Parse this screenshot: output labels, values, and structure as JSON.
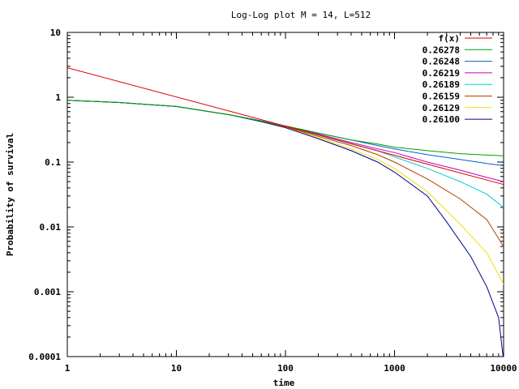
{
  "chart_data": {
    "type": "line",
    "title": "Log-Log plot M = 14, L=512",
    "xlabel": "time",
    "ylabel": "Probability of survival",
    "x_scale": "log",
    "y_scale": "log",
    "xlim": [
      1,
      10000
    ],
    "ylim": [
      0.0001,
      10
    ],
    "x_ticks": [
      1,
      10,
      100,
      1000,
      10000
    ],
    "x_tick_labels": [
      "1",
      "10",
      "100",
      "1000",
      "10000"
    ],
    "y_ticks": [
      0.0001,
      0.001,
      0.01,
      0.1,
      1,
      10
    ],
    "y_tick_labels": [
      "0.0001",
      "0.001",
      "0.01",
      "0.1",
      "1",
      "10"
    ],
    "grid": false,
    "legend_position": "top-right",
    "series": [
      {
        "name": "f(x)",
        "color": "#e00000",
        "x": [
          1,
          10000
        ],
        "y": [
          2.85,
          0.045
        ]
      },
      {
        "name": "0.26278",
        "color": "#00a000",
        "x": [
          1,
          3,
          10,
          30,
          60,
          100,
          200,
          400,
          700,
          1000,
          2000,
          4000,
          7000,
          10000
        ],
        "y": [
          0.9,
          0.83,
          0.72,
          0.54,
          0.43,
          0.36,
          0.28,
          0.22,
          0.19,
          0.17,
          0.15,
          0.135,
          0.128,
          0.125
        ]
      },
      {
        "name": "0.26248",
        "color": "#0060d0",
        "x": [
          1,
          3,
          10,
          30,
          60,
          100,
          200,
          400,
          700,
          1000,
          2000,
          4000,
          7000,
          10000
        ],
        "y": [
          0.9,
          0.83,
          0.72,
          0.54,
          0.43,
          0.36,
          0.28,
          0.22,
          0.18,
          0.16,
          0.13,
          0.11,
          0.095,
          0.088
        ]
      },
      {
        "name": "0.26219",
        "color": "#c000c0",
        "x": [
          1,
          3,
          10,
          30,
          60,
          100,
          200,
          400,
          700,
          1000,
          2000,
          4000,
          7000,
          10000
        ],
        "y": [
          0.9,
          0.83,
          0.72,
          0.54,
          0.43,
          0.36,
          0.27,
          0.2,
          0.16,
          0.14,
          0.1,
          0.075,
          0.058,
          0.05
        ]
      },
      {
        "name": "0.26189",
        "color": "#00d0d0",
        "x": [
          1,
          3,
          10,
          30,
          60,
          100,
          200,
          400,
          700,
          1000,
          2000,
          4000,
          7000,
          10000
        ],
        "y": [
          0.9,
          0.83,
          0.72,
          0.54,
          0.43,
          0.36,
          0.26,
          0.19,
          0.15,
          0.12,
          0.08,
          0.05,
          0.032,
          0.02
        ]
      },
      {
        "name": "0.26159",
        "color": "#b04000",
        "x": [
          1,
          3,
          10,
          30,
          60,
          100,
          200,
          400,
          700,
          1000,
          2000,
          4000,
          7000,
          10000
        ],
        "y": [
          0.9,
          0.83,
          0.72,
          0.54,
          0.43,
          0.35,
          0.25,
          0.18,
          0.13,
          0.1,
          0.055,
          0.027,
          0.013,
          0.005
        ]
      },
      {
        "name": "0.26129",
        "color": "#f0e000",
        "x": [
          1,
          3,
          10,
          30,
          60,
          100,
          200,
          400,
          700,
          1000,
          2000,
          4000,
          7000,
          10000
        ],
        "y": [
          0.9,
          0.83,
          0.72,
          0.54,
          0.43,
          0.35,
          0.24,
          0.16,
          0.11,
          0.08,
          0.035,
          0.011,
          0.004,
          0.0013
        ]
      },
      {
        "name": "0.26100",
        "color": "#000090",
        "x": [
          1,
          3,
          10,
          30,
          60,
          100,
          200,
          400,
          700,
          1000,
          2000,
          3000,
          5000,
          7000,
          9000,
          9900
        ],
        "y": [
          0.9,
          0.83,
          0.72,
          0.54,
          0.42,
          0.34,
          0.23,
          0.15,
          0.1,
          0.07,
          0.03,
          0.012,
          0.0035,
          0.0012,
          0.0004,
          0.0001
        ]
      }
    ]
  }
}
